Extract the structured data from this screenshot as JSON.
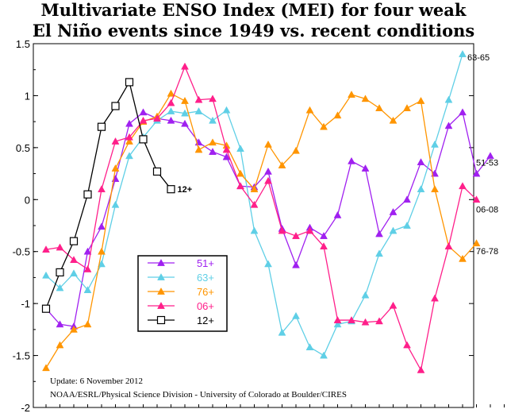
{
  "title_line1": "Multivariate ENSO Index (MEI) for four weak",
  "title_line2": "El Niño events since 1949 vs. recent conditions",
  "chart_data": {
    "type": "line",
    "title": "Multivariate ENSO Index (MEI) for four weak El Niño events since 1949 vs. recent conditions",
    "ylim": [
      -2,
      1.5
    ],
    "yticks": [
      "1.5",
      "1",
      "0.5",
      "0",
      "-0.5",
      "-1",
      "-1.5",
      "-2"
    ],
    "ytick_values": [
      1.5,
      1,
      0.5,
      0,
      -0.5,
      -1,
      -1.5,
      -2
    ],
    "grid": false,
    "legend_position": "lower-left",
    "series": [
      {
        "name": "51+",
        "end_label": "51-53",
        "color": "#a020f0",
        "marker": "triangle",
        "values": [
          -1.05,
          -1.2,
          -1.22,
          -0.5,
          -0.26,
          0.2,
          0.73,
          0.84,
          0.78,
          0.76,
          0.73,
          0.55,
          0.46,
          0.41,
          0.13,
          0.12,
          0.27,
          -0.28,
          -0.63,
          -0.27,
          -0.35,
          -0.15,
          0.37,
          0.3,
          -0.33,
          -0.12,
          0.0,
          0.36,
          0.25,
          0.71,
          0.84,
          0.25,
          0.42
        ]
      },
      {
        "name": "63+",
        "end_label": "63-65",
        "color": "#5fcfe6",
        "marker": "triangle",
        "values": [
          -0.73,
          -0.85,
          -0.71,
          -0.87,
          -0.62,
          -0.05,
          0.42,
          0.6,
          0.76,
          0.85,
          0.83,
          0.85,
          0.76,
          0.86,
          0.49,
          -0.3,
          -0.62,
          -1.28,
          -1.12,
          -1.42,
          -1.5,
          -1.2,
          -1.17,
          -0.92,
          -0.52,
          -0.3,
          -0.25,
          0.1,
          0.53,
          0.96,
          1.4
        ]
      },
      {
        "name": "76+",
        "end_label": "76-78",
        "color": "#ff9500",
        "marker": "triangle",
        "values": [
          -1.62,
          -1.4,
          -1.25,
          -1.2,
          -0.5,
          0.3,
          0.56,
          0.75,
          0.8,
          1.02,
          0.95,
          0.48,
          0.55,
          0.52,
          0.25,
          0.1,
          0.53,
          0.33,
          0.47,
          0.86,
          0.7,
          0.81,
          1.01,
          0.97,
          0.88,
          0.76,
          0.88,
          0.95,
          0.1,
          -0.45,
          -0.57,
          -0.42
        ]
      },
      {
        "name": "06+",
        "end_label": "06-08",
        "color": "#ff1f8a",
        "marker": "triangle",
        "values": [
          -0.48,
          -0.46,
          -0.58,
          -0.67,
          0.1,
          0.56,
          0.6,
          0.76,
          0.78,
          0.93,
          1.28,
          0.96,
          0.97,
          0.48,
          0.13,
          -0.05,
          0.18,
          -0.3,
          -0.35,
          -0.3,
          -0.45,
          -1.16,
          -1.16,
          -1.18,
          -1.17,
          -1.02,
          -1.4,
          -1.64,
          -0.95,
          -0.45,
          0.13,
          0.0
        ]
      },
      {
        "name": "12+",
        "end_label": "12+",
        "color": "#000000",
        "marker": "square",
        "values": [
          -1.05,
          -0.7,
          -0.4,
          0.05,
          0.7,
          0.9,
          1.13,
          0.58,
          0.27,
          0.1
        ]
      }
    ],
    "annotations": [
      "Update: 6 November 2012",
      "NOAA/ESRL/Physical Science Division - University of Colorado at Boulder/CIRES"
    ]
  }
}
